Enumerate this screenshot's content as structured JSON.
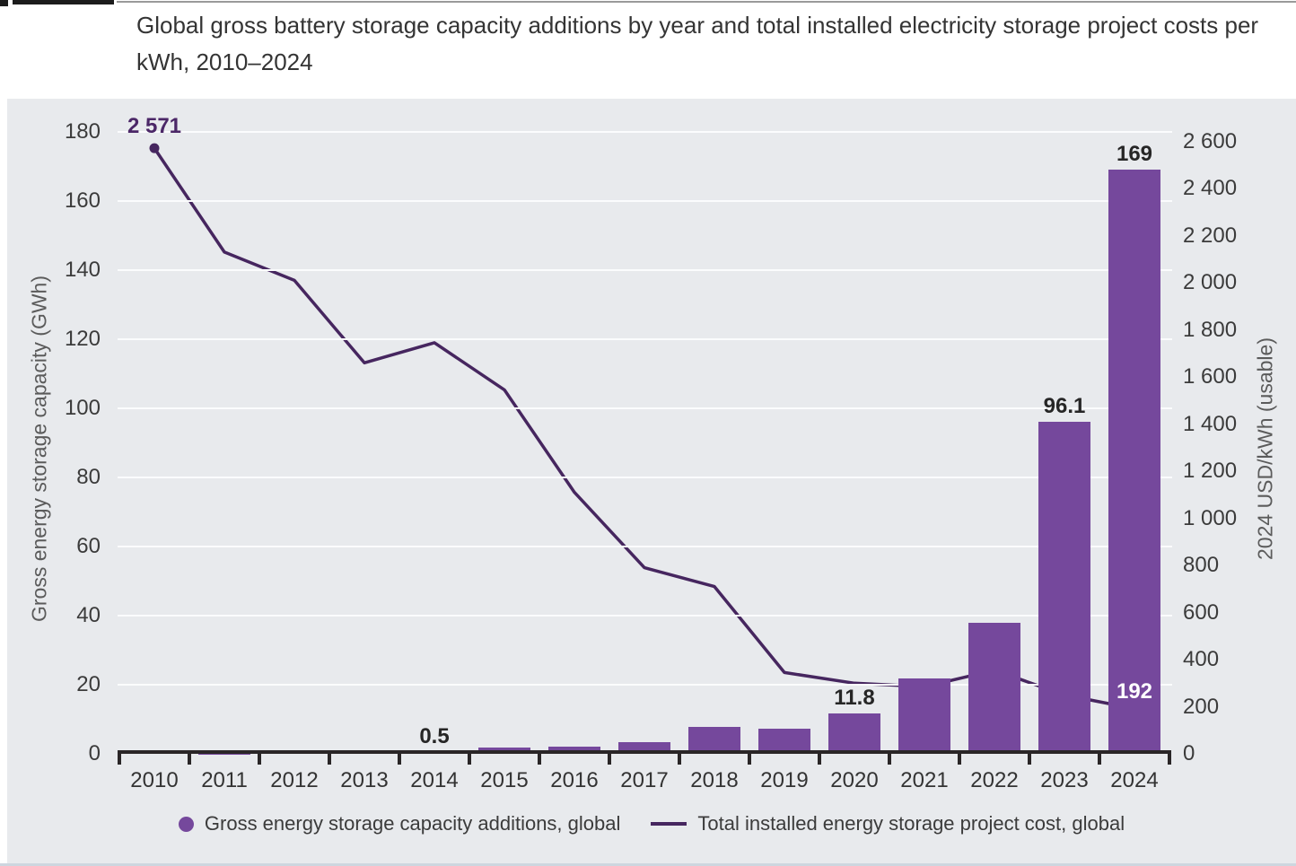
{
  "page": {
    "title": "Global gross battery storage capacity additions by year and total installed electricity storage project costs per kWh, 2010–2024"
  },
  "colors": {
    "panel_bg": "#e8eaed",
    "bottom_strip": "#cdd6df",
    "bar_purple": "#75489c",
    "line_dark_purple": "#46265f",
    "gridline": "#fbfcfd",
    "tick_text": "#3b3b3b",
    "axis_line": "#2a2627",
    "axis_title_text": "#5b5b5b",
    "label_dark": "#262626",
    "label_purple": "#4b2767",
    "label_white": "#ffffff"
  },
  "chart_data": {
    "type": "combo-bar-line",
    "categories": [
      "2010",
      "2011",
      "2012",
      "2013",
      "2014",
      "2015",
      "2016",
      "2017",
      "2018",
      "2019",
      "2020",
      "2021",
      "2022",
      "2023",
      "2024"
    ],
    "series": [
      {
        "name": "Gross energy storage capacity additions, global",
        "type": "bar",
        "axis": "left",
        "unit": "GWh",
        "values": [
          0,
          0.1,
          0.3,
          0.2,
          0.5,
          1.7,
          2.2,
          3.3,
          7.9,
          7.3,
          11.8,
          21.8,
          37.9,
          96.1,
          169
        ]
      },
      {
        "name": "Total installed energy storage project cost, global",
        "type": "line",
        "axis": "right",
        "unit": "2024 USD/kWh",
        "values": [
          2571,
          2130,
          2010,
          1660,
          1745,
          1545,
          1110,
          790,
          710,
          345,
          300,
          285,
          355,
          250,
          192
        ],
        "endpoint_markers": [
          "2010",
          "2024"
        ]
      }
    ],
    "point_labels": [
      {
        "series": "line",
        "year": "2010",
        "text": "2 571",
        "style": "purple"
      },
      {
        "series": "bar",
        "year": "2014",
        "text": "0.5",
        "style": "dark"
      },
      {
        "series": "bar",
        "year": "2020",
        "text": "11.8",
        "style": "dark"
      },
      {
        "series": "bar",
        "year": "2023",
        "text": "96.1",
        "style": "dark"
      },
      {
        "series": "bar",
        "year": "2024",
        "text": "169",
        "style": "dark"
      },
      {
        "series": "line",
        "year": "2024",
        "text": "192",
        "style": "white"
      }
    ],
    "left_axis": {
      "title": "Gross energy storage capacity (GWh)",
      "min": 0,
      "max": 180,
      "step": 20
    },
    "right_axis": {
      "title": "2024 USD/kWh (usable)",
      "min": 0,
      "max": 2600,
      "step": 200,
      "thousands_separator": " "
    },
    "legend": [
      {
        "swatch": "circle",
        "label": "Gross energy storage capacity additions, global"
      },
      {
        "swatch": "line",
        "label": "Total installed energy storage project cost, global"
      }
    ],
    "grid": "horizontal"
  }
}
